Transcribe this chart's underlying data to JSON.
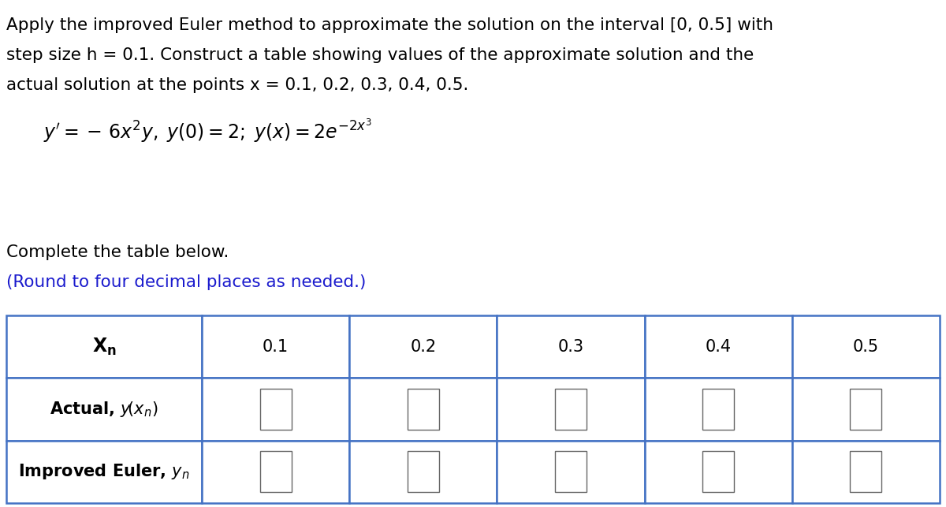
{
  "bg_color": "#ffffff",
  "text_color": "#000000",
  "blue_color": "#1a1acd",
  "table_border_color": "#4472c4",
  "header_line1": "Apply the improved Euler method to approximate the solution on the interval [0, 0.5] with",
  "header_line2": "step size h = 0.1. Construct a table showing values of the approximate solution and the",
  "header_line3": "actual solution at the points x = 0.1, 0.2, 0.3, 0.4, 0.5.",
  "complete_text": "Complete the table below.",
  "round_text": "(Round to four decimal places as needed.)",
  "xn_values": [
    "0.1",
    "0.2",
    "0.3",
    "0.4",
    "0.5"
  ],
  "figsize": [
    12.0,
    6.43
  ],
  "dpi": 100,
  "header_fontsize": 15.5,
  "formula_fontsize": 17,
  "table_label_fontsize": 15,
  "table_val_fontsize": 15
}
